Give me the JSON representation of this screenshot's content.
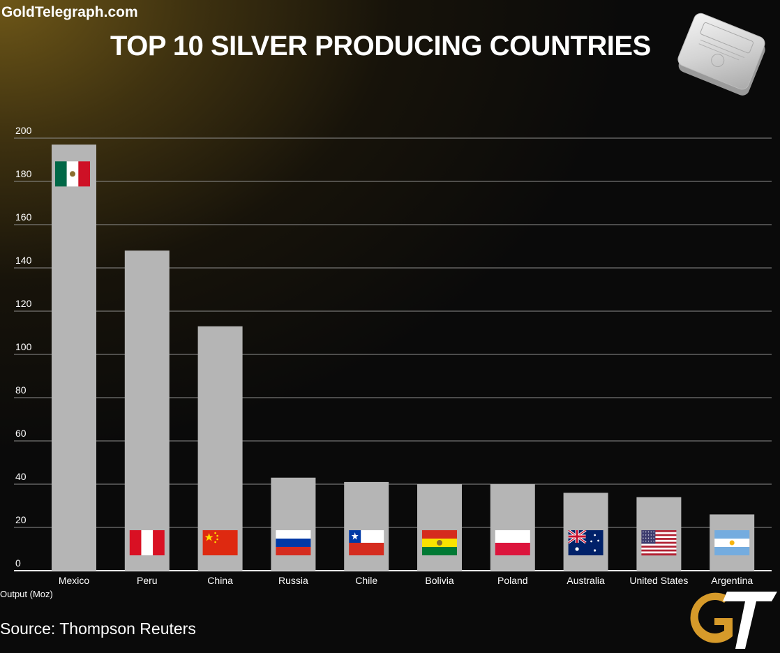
{
  "header": {
    "brand": "GoldTelegraph.com",
    "title": "TOP 10 SILVER PRODUCING COUNTRIES"
  },
  "footer": {
    "source": "Source: Thompson Reuters",
    "logo_text": "GT"
  },
  "colors": {
    "bar": "#b5b5b5",
    "grid": "#8f8f8f",
    "axis": "#ffffff",
    "text": "#ffffff",
    "logo_gold": "#d69a2a"
  },
  "chart_data": {
    "type": "bar",
    "title": "TOP 10 SILVER PRODUCING COUNTRIES",
    "xlabel": "",
    "ylabel": "Output (Moz)",
    "ylim": [
      0,
      200
    ],
    "yticks": [
      0,
      20,
      40,
      60,
      80,
      100,
      120,
      140,
      160,
      180,
      200
    ],
    "grid": true,
    "categories": [
      "Mexico",
      "Peru",
      "China",
      "Russia",
      "Chile",
      "Bolivia",
      "Poland",
      "Australia",
      "United States",
      "Argentina"
    ],
    "values": [
      197,
      148,
      113,
      43,
      41,
      40,
      40,
      36,
      34,
      26
    ],
    "flags": [
      "mexico-flag",
      "peru-flag",
      "china-flag",
      "russia-flag",
      "chile-flag",
      "bolivia-flag",
      "poland-flag",
      "australia-flag",
      "usa-flag",
      "argentina-flag"
    ]
  }
}
